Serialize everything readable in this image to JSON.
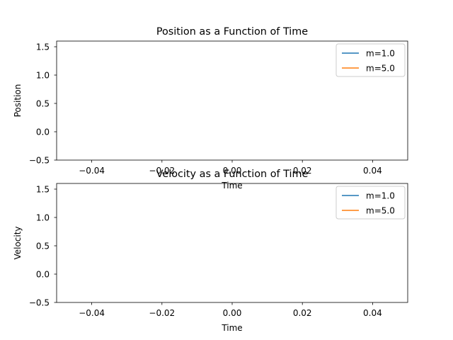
{
  "chart_data": [
    {
      "type": "line",
      "title": "Position as a Function of Time",
      "xlabel": "Time",
      "ylabel": "Position",
      "xlim": [
        -0.05,
        0.05
      ],
      "ylim": [
        -0.5,
        1.6
      ],
      "xticks": [
        -0.04,
        -0.02,
        0.0,
        0.02,
        0.04
      ],
      "xtick_labels": [
        "−0.04",
        "−0.02",
        "0.00",
        "0.02",
        "0.04"
      ],
      "yticks": [
        -0.5,
        0.0,
        0.5,
        1.0,
        1.5
      ],
      "ytick_labels": [
        "−0.5",
        "0.0",
        "0.5",
        "1.0",
        "1.5"
      ],
      "legend_position": "top-right",
      "grid": false,
      "series": [
        {
          "name": "m=1.0",
          "color": "#1f77b4",
          "x": [],
          "y": []
        },
        {
          "name": "m=5.0",
          "color": "#ff7f0e",
          "x": [],
          "y": []
        }
      ]
    },
    {
      "type": "line",
      "title": "Velocity as a Function of Time",
      "xlabel": "Time",
      "ylabel": "Velocity",
      "xlim": [
        -0.05,
        0.05
      ],
      "ylim": [
        -0.5,
        1.6
      ],
      "xticks": [
        -0.04,
        -0.02,
        0.0,
        0.02,
        0.04
      ],
      "xtick_labels": [
        "−0.04",
        "−0.02",
        "0.00",
        "0.02",
        "0.04"
      ],
      "yticks": [
        -0.5,
        0.0,
        0.5,
        1.0,
        1.5
      ],
      "ytick_labels": [
        "−0.5",
        "0.0",
        "0.5",
        "1.0",
        "1.5"
      ],
      "legend_position": "top-right",
      "grid": false,
      "series": [
        {
          "name": "m=1.0",
          "color": "#1f77b4",
          "x": [],
          "y": []
        },
        {
          "name": "m=5.0",
          "color": "#ff7f0e",
          "x": [],
          "y": []
        }
      ]
    }
  ]
}
